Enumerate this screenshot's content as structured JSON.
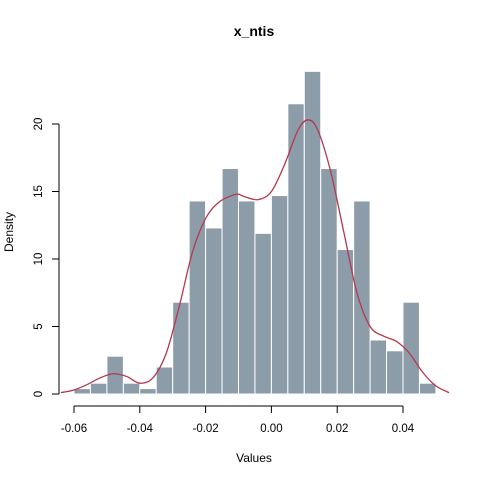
{
  "chart_data": {
    "type": "histogram",
    "title": "x_ntis",
    "xlabel": "Values",
    "ylabel": "Density",
    "xlim": [
      -0.064,
      0.054
    ],
    "ylim": [
      0,
      24
    ],
    "x_ticks": [
      -0.06,
      -0.04,
      -0.02,
      0.0,
      0.02,
      0.04
    ],
    "x_tick_labels": [
      "-0.06",
      "-0.04",
      "-0.02",
      "0.00",
      "0.02",
      "0.04"
    ],
    "y_ticks": [
      0,
      5,
      10,
      15,
      20
    ],
    "y_tick_labels": [
      "0",
      "5",
      "10",
      "15",
      "20"
    ],
    "bin_width": 0.005,
    "bins": [
      {
        "start": -0.06,
        "end": -0.055,
        "density": 0.4
      },
      {
        "start": -0.055,
        "end": -0.05,
        "density": 0.8
      },
      {
        "start": -0.05,
        "end": -0.045,
        "density": 2.8
      },
      {
        "start": -0.045,
        "end": -0.04,
        "density": 0.8
      },
      {
        "start": -0.04,
        "end": -0.035,
        "density": 0.4
      },
      {
        "start": -0.035,
        "end": -0.03,
        "density": 2.0
      },
      {
        "start": -0.03,
        "end": -0.025,
        "density": 6.8
      },
      {
        "start": -0.025,
        "end": -0.02,
        "density": 14.3
      },
      {
        "start": -0.02,
        "end": -0.015,
        "density": 12.3
      },
      {
        "start": -0.015,
        "end": -0.01,
        "density": 16.7
      },
      {
        "start": -0.01,
        "end": -0.005,
        "density": 14.3
      },
      {
        "start": -0.005,
        "end": 0.0,
        "density": 11.9
      },
      {
        "start": 0.0,
        "end": 0.005,
        "density": 14.7
      },
      {
        "start": 0.005,
        "end": 0.01,
        "density": 21.5
      },
      {
        "start": 0.01,
        "end": 0.015,
        "density": 23.9
      },
      {
        "start": 0.015,
        "end": 0.02,
        "density": 16.7
      },
      {
        "start": 0.02,
        "end": 0.025,
        "density": 10.7
      },
      {
        "start": 0.025,
        "end": 0.03,
        "density": 14.3
      },
      {
        "start": 0.03,
        "end": 0.035,
        "density": 4.0
      },
      {
        "start": 0.035,
        "end": 0.04,
        "density": 3.2
      },
      {
        "start": 0.04,
        "end": 0.045,
        "density": 6.8
      },
      {
        "start": 0.045,
        "end": 0.05,
        "density": 0.8
      }
    ],
    "density_curve": {
      "x": [
        -0.064,
        -0.06,
        -0.056,
        -0.052,
        -0.048,
        -0.044,
        -0.04,
        -0.036,
        -0.032,
        -0.028,
        -0.024,
        -0.02,
        -0.016,
        -0.012,
        -0.01,
        -0.008,
        -0.004,
        0.0,
        0.004,
        0.008,
        0.011,
        0.014,
        0.018,
        0.022,
        0.026,
        0.03,
        0.034,
        0.038,
        0.042,
        0.046,
        0.05,
        0.054
      ],
      "y": [
        0.1,
        0.3,
        0.7,
        1.2,
        1.5,
        1.3,
        0.8,
        1.2,
        3.0,
        6.5,
        10.5,
        13.0,
        14.2,
        14.7,
        14.8,
        14.6,
        14.4,
        15.0,
        17.0,
        19.5,
        20.3,
        19.6,
        16.5,
        12.0,
        7.5,
        5.0,
        4.3,
        3.9,
        3.0,
        1.6,
        0.6,
        0.1
      ],
      "color": "#b5384e"
    },
    "bar_color": "#8c9ca8",
    "grid": false,
    "legend": "none"
  }
}
